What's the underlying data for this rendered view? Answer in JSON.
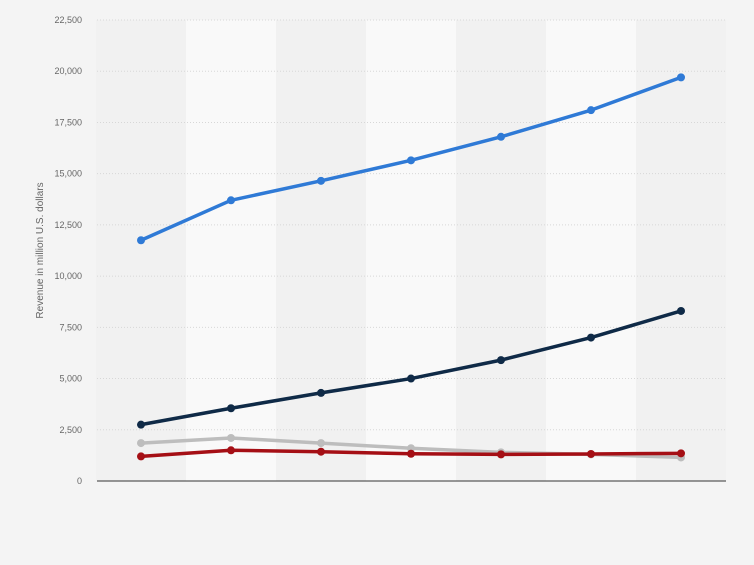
{
  "chart_data": {
    "type": "line",
    "title": "",
    "xlabel": "",
    "ylabel": "Revenue in million U.S. dollars",
    "ylim": [
      0,
      22500
    ],
    "yticks": [
      0,
      2500,
      5000,
      7500,
      10000,
      12500,
      15000,
      17500,
      20000,
      22500
    ],
    "ytick_labels": [
      "0",
      "2,500",
      "5,000",
      "7,500",
      "10,000",
      "12,500",
      "15,000",
      "17,500",
      "20,000",
      "22,500"
    ],
    "categories": [
      "",
      "",
      "",
      "",
      "",
      "",
      ""
    ],
    "grid": true,
    "legend": "none",
    "series": [
      {
        "color": "#2f7ad6",
        "values": [
          11750,
          13700,
          14650,
          15650,
          16800,
          18100,
          19700
        ]
      },
      {
        "color": "#0f2a47",
        "values": [
          2750,
          3550,
          4300,
          5000,
          5900,
          7000,
          8300
        ]
      },
      {
        "color": "#bdbdbd",
        "values": [
          1850,
          2100,
          1850,
          1600,
          1400,
          1300,
          1150
        ]
      },
      {
        "color": "#a50f15",
        "values": [
          1200,
          1500,
          1430,
          1330,
          1300,
          1320,
          1350
        ]
      }
    ]
  }
}
